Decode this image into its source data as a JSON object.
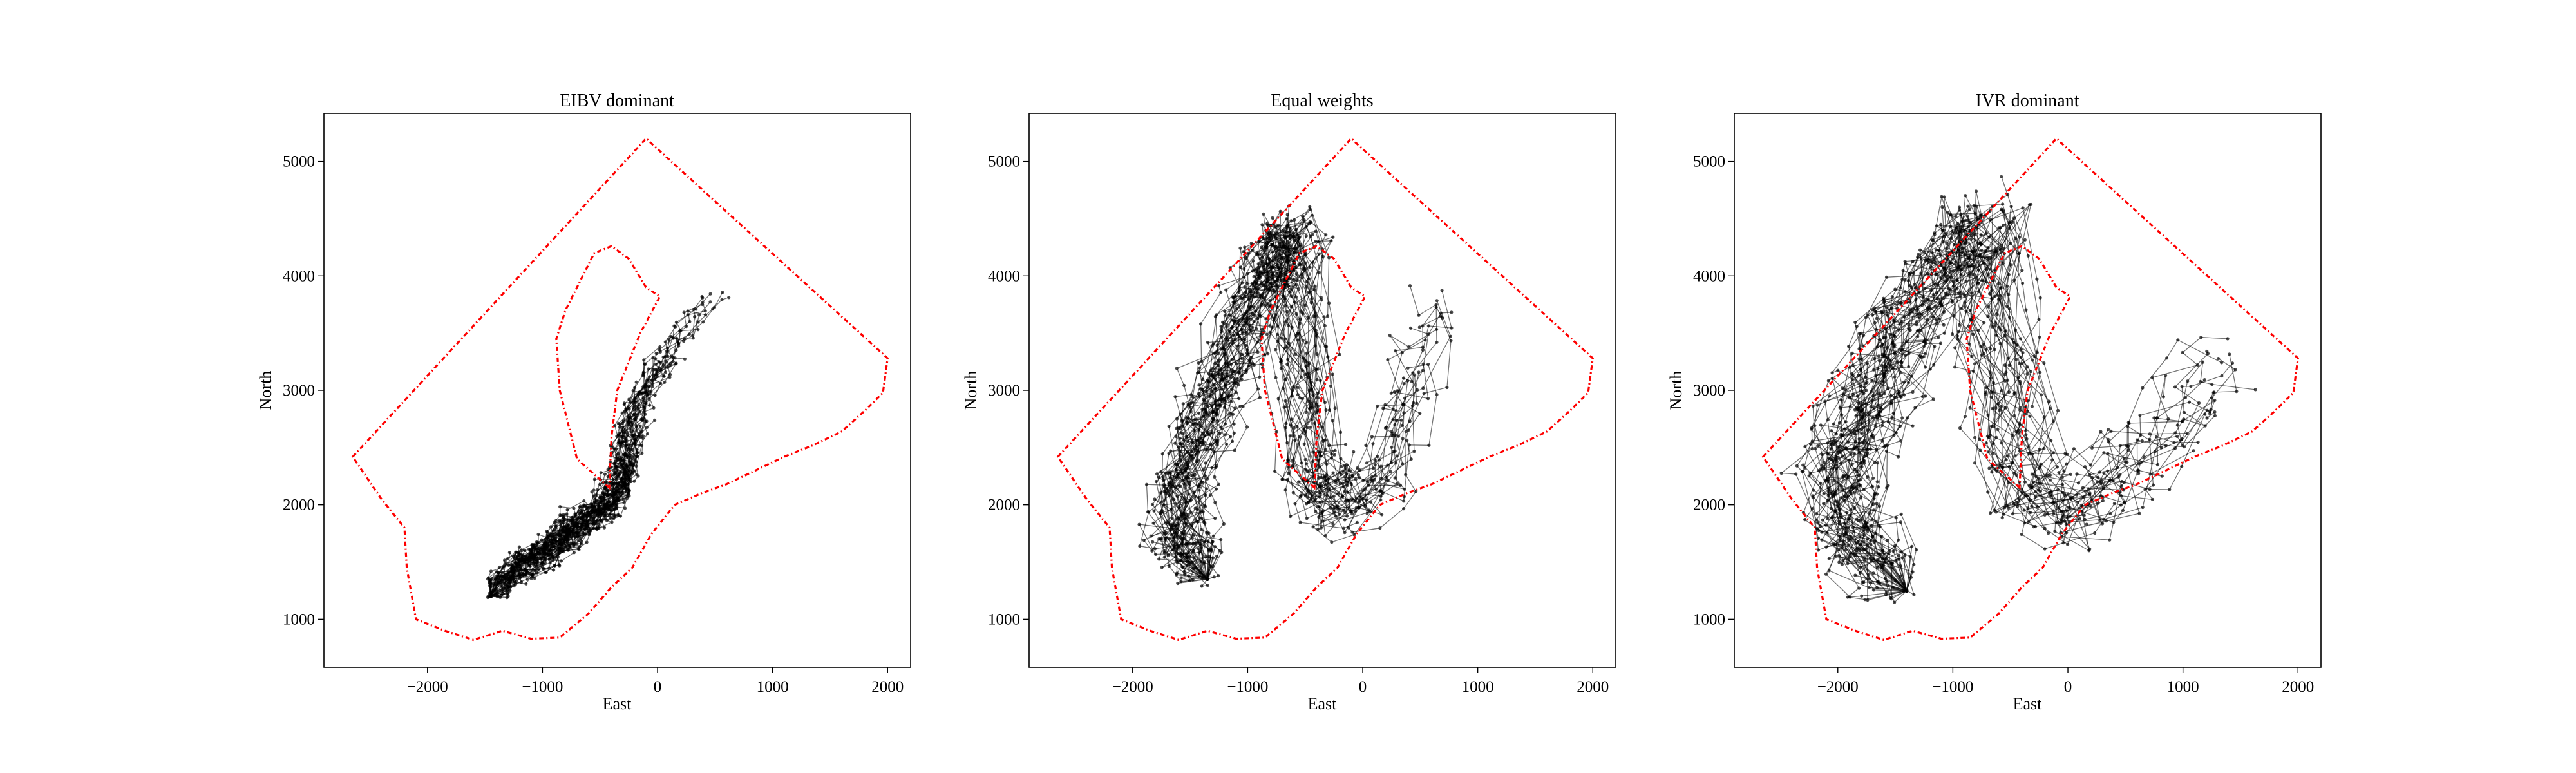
{
  "chart_data": [
    {
      "type": "line",
      "title": "EIBV dominant",
      "xlabel": "East",
      "ylabel": "North",
      "xlim": [
        -2900,
        2200
      ],
      "ylim": [
        580,
        5420
      ],
      "xticks": [
        -2000,
        -1000,
        0,
        1000,
        2000
      ],
      "yticks": [
        1000,
        2000,
        3000,
        4000,
        5000
      ],
      "grid": false,
      "legend": "none",
      "spread": 120,
      "start": [
        -1450,
        1200
      ],
      "route": [
        [
          -1450,
          1200
        ],
        [
          -1250,
          1450
        ],
        [
          -1050,
          1550
        ],
        [
          -850,
          1700
        ],
        [
          -700,
          1820
        ],
        [
          -500,
          1950
        ],
        [
          -350,
          2150
        ],
        [
          -280,
          2400
        ],
        [
          -220,
          2700
        ],
        [
          -100,
          3000
        ],
        [
          80,
          3250
        ],
        [
          250,
          3500
        ],
        [
          450,
          3800
        ],
        [
          600,
          4100
        ]
      ]
    },
    {
      "type": "line",
      "title": "Equal weights",
      "xlabel": "East",
      "ylabel": "North",
      "xlim": [
        -2900,
        2200
      ],
      "ylim": [
        580,
        5420
      ],
      "xticks": [
        -2000,
        -1000,
        0,
        1000,
        2000
      ],
      "yticks": [
        1000,
        2000,
        3000,
        4000,
        5000
      ],
      "grid": false,
      "legend": "none",
      "spread": 260,
      "start": [
        -1350,
        1350
      ],
      "route": [
        [
          -1350,
          1350
        ],
        [
          -1600,
          1750
        ],
        [
          -1500,
          2300
        ],
        [
          -1300,
          2900
        ],
        [
          -1100,
          3500
        ],
        [
          -800,
          4100
        ],
        [
          -600,
          4350
        ],
        [
          -550,
          3200
        ],
        [
          -420,
          2200
        ],
        [
          -200,
          2000
        ],
        [
          150,
          2350
        ],
        [
          350,
          2900
        ],
        [
          550,
          3450
        ],
        [
          700,
          3850
        ]
      ]
    },
    {
      "type": "line",
      "title": "IVR dominant",
      "xlabel": "East",
      "ylabel": "North",
      "xlim": [
        -2900,
        2200
      ],
      "ylim": [
        580,
        5420
      ],
      "xticks": [
        -2000,
        -1000,
        0,
        1000,
        2000
      ],
      "yticks": [
        1000,
        2000,
        3000,
        4000,
        5000
      ],
      "grid": false,
      "legend": "none",
      "spread": 320,
      "start": [
        -1400,
        1250
      ],
      "route": [
        [
          -1400,
          1250
        ],
        [
          -1900,
          1700
        ],
        [
          -2000,
          2300
        ],
        [
          -1750,
          2900
        ],
        [
          -1450,
          3500
        ],
        [
          -1050,
          4050
        ],
        [
          -700,
          4400
        ],
        [
          -600,
          3200
        ],
        [
          -400,
          2200
        ],
        [
          0,
          1900
        ],
        [
          450,
          2350
        ],
        [
          900,
          2800
        ],
        [
          1300,
          3100
        ],
        [
          1550,
          3300
        ]
      ]
    }
  ],
  "boundary": {
    "color": "#ff0000",
    "outer": [
      [
        -2650,
        2420
      ],
      [
        -100,
        5200
      ],
      [
        2000,
        3280
      ],
      [
        1960,
        2980
      ],
      [
        1800,
        2820
      ],
      [
        1600,
        2640
      ],
      [
        1350,
        2520
      ],
      [
        1100,
        2420
      ],
      [
        850,
        2300
      ],
      [
        600,
        2180
      ],
      [
        380,
        2100
      ],
      [
        150,
        2000
      ],
      [
        -50,
        1750
      ],
      [
        -220,
        1450
      ],
      [
        -400,
        1280
      ],
      [
        -600,
        1050
      ],
      [
        -850,
        840
      ],
      [
        -1100,
        830
      ],
      [
        -1350,
        900
      ],
      [
        -1600,
        820
      ],
      [
        -1850,
        900
      ],
      [
        -2100,
        1000
      ],
      [
        -2180,
        1450
      ],
      [
        -2200,
        1800
      ],
      [
        -2400,
        2050
      ],
      [
        -2650,
        2420
      ]
    ],
    "inner": [
      [
        -420,
        2150
      ],
      [
        -700,
        2400
      ],
      [
        -850,
        3000
      ],
      [
        -880,
        3450
      ],
      [
        -800,
        3700
      ],
      [
        -650,
        4000
      ],
      [
        -550,
        4200
      ],
      [
        -400,
        4260
      ],
      [
        -250,
        4150
      ],
      [
        -100,
        3900
      ],
      [
        20,
        3820
      ],
      [
        -150,
        3500
      ],
      [
        -350,
        3000
      ],
      [
        -400,
        2600
      ],
      [
        -420,
        2150
      ]
    ]
  },
  "colors": {
    "trajectory": "#000000",
    "frame": "#000000"
  }
}
